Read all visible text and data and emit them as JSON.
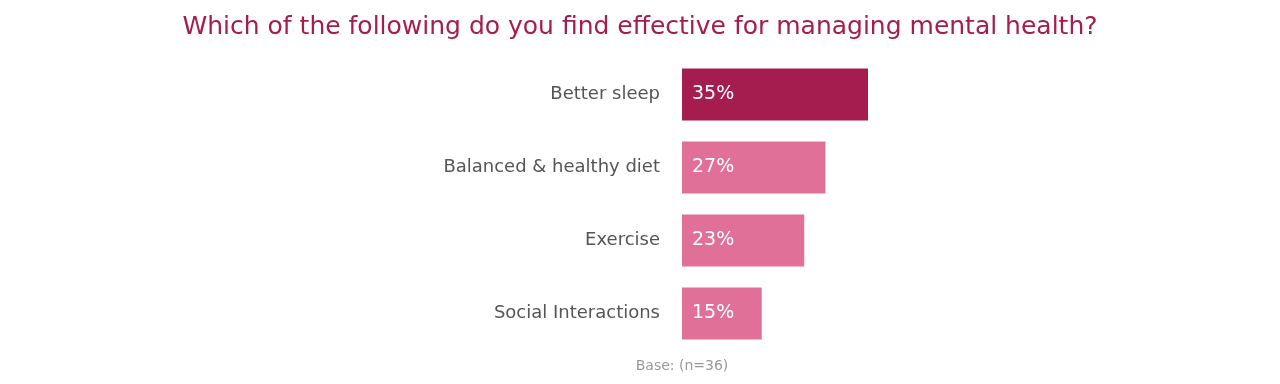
{
  "chart_data": {
    "type": "bar",
    "orientation": "horizontal",
    "title": "Which of the following do you find effective for managing mental health?",
    "categories": [
      "Better sleep",
      "Balanced & healthy diet",
      "Exercise",
      "Social Interactions"
    ],
    "values": [
      35,
      27,
      23,
      15
    ],
    "value_labels": [
      "35%",
      "27%",
      "23%",
      "15%"
    ],
    "colors": [
      "#a51c4e",
      "#e07098",
      "#e07098",
      "#e07098"
    ],
    "annotations": [
      "Base: (n=36)"
    ],
    "legend": false
  }
}
